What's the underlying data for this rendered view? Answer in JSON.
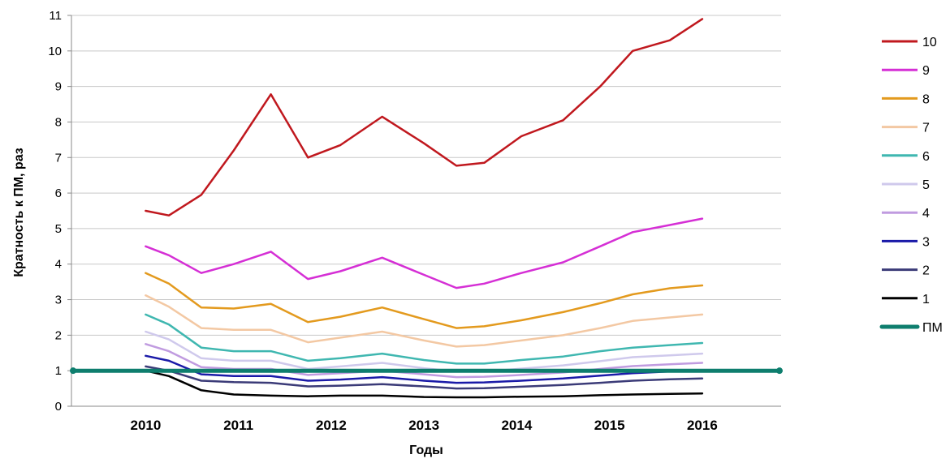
{
  "chart_data": {
    "type": "line",
    "xlabel": "Годы",
    "ylabel": "Кратность к ПМ, раз",
    "ylim": [
      0,
      11
    ],
    "yticks": [
      0,
      1,
      2,
      3,
      4,
      5,
      6,
      7,
      8,
      9,
      10,
      11
    ],
    "grid": "horizontal",
    "legend_placement": "right",
    "x": [
      2010.0,
      2010.25,
      2010.6,
      2010.95,
      2011.35,
      2011.75,
      2012.1,
      2012.55,
      2013.0,
      2013.35,
      2013.65,
      2014.05,
      2014.5,
      2014.9,
      2015.25,
      2015.65,
      2016.0
    ],
    "x_ticks": [
      {
        "value": 2010,
        "label": "2010"
      },
      {
        "value": 2011,
        "label": "2011"
      },
      {
        "value": 2012,
        "label": "2012"
      },
      {
        "value": 2013,
        "label": "2013"
      },
      {
        "value": 2014,
        "label": "2014"
      },
      {
        "value": 2015,
        "label": "2015"
      },
      {
        "value": 2016,
        "label": "2016"
      }
    ],
    "series": [
      {
        "name": "10",
        "color": "#c0181e",
        "values": [
          5.5,
          5.37,
          5.95,
          7.2,
          8.78,
          7.0,
          7.35,
          8.15,
          7.4,
          6.77,
          6.85,
          7.6,
          8.05,
          9.0,
          10.0,
          10.3,
          10.9
        ]
      },
      {
        "name": "9",
        "color": "#d52fd5",
        "values": [
          4.5,
          4.25,
          3.75,
          4.0,
          4.35,
          3.58,
          3.8,
          4.18,
          3.7,
          3.33,
          3.45,
          3.75,
          4.05,
          4.5,
          4.9,
          5.1,
          5.28
        ]
      },
      {
        "name": "8",
        "color": "#e39a1e",
        "values": [
          3.75,
          3.45,
          2.78,
          2.75,
          2.88,
          2.37,
          2.52,
          2.78,
          2.45,
          2.2,
          2.25,
          2.42,
          2.65,
          2.9,
          3.15,
          3.32,
          3.4
        ]
      },
      {
        "name": "7",
        "color": "#f3c8a3",
        "values": [
          3.12,
          2.8,
          2.2,
          2.15,
          2.15,
          1.8,
          1.93,
          2.1,
          1.85,
          1.68,
          1.72,
          1.85,
          2.0,
          2.2,
          2.4,
          2.5,
          2.58
        ]
      },
      {
        "name": "6",
        "color": "#3fb7b0",
        "values": [
          2.58,
          2.3,
          1.65,
          1.55,
          1.55,
          1.28,
          1.35,
          1.48,
          1.3,
          1.2,
          1.2,
          1.3,
          1.4,
          1.55,
          1.65,
          1.72,
          1.78
        ]
      },
      {
        "name": "5",
        "color": "#cfc9ec",
        "values": [
          2.1,
          1.88,
          1.35,
          1.28,
          1.28,
          1.05,
          1.12,
          1.22,
          1.07,
          0.98,
          0.98,
          1.06,
          1.15,
          1.27,
          1.38,
          1.43,
          1.48
        ]
      },
      {
        "name": "4",
        "color": "#c09be0",
        "values": [
          1.75,
          1.55,
          1.1,
          1.05,
          1.05,
          0.88,
          0.93,
          1.0,
          0.9,
          0.82,
          0.83,
          0.88,
          0.95,
          1.05,
          1.13,
          1.18,
          1.22
        ]
      },
      {
        "name": "3",
        "color": "#1a1aa8",
        "values": [
          1.42,
          1.28,
          0.9,
          0.85,
          0.85,
          0.72,
          0.75,
          0.82,
          0.72,
          0.66,
          0.67,
          0.72,
          0.78,
          0.86,
          0.93,
          0.98,
          1.0
        ]
      },
      {
        "name": "2",
        "color": "#3b3b78",
        "values": [
          1.12,
          1.0,
          0.72,
          0.68,
          0.66,
          0.56,
          0.58,
          0.62,
          0.56,
          0.5,
          0.51,
          0.55,
          0.6,
          0.66,
          0.72,
          0.76,
          0.78
        ]
      },
      {
        "name": "1",
        "color": "#000000",
        "values": [
          1.0,
          0.85,
          0.45,
          0.33,
          0.3,
          0.28,
          0.3,
          0.3,
          0.26,
          0.25,
          0.25,
          0.27,
          0.28,
          0.31,
          0.33,
          0.35,
          0.36
        ]
      },
      {
        "name": "ПМ",
        "color": "#0e7e6e",
        "values": [
          1,
          1,
          1,
          1,
          1,
          1,
          1,
          1,
          1,
          1,
          1,
          1,
          1,
          1,
          1,
          1,
          1
        ]
      }
    ]
  }
}
